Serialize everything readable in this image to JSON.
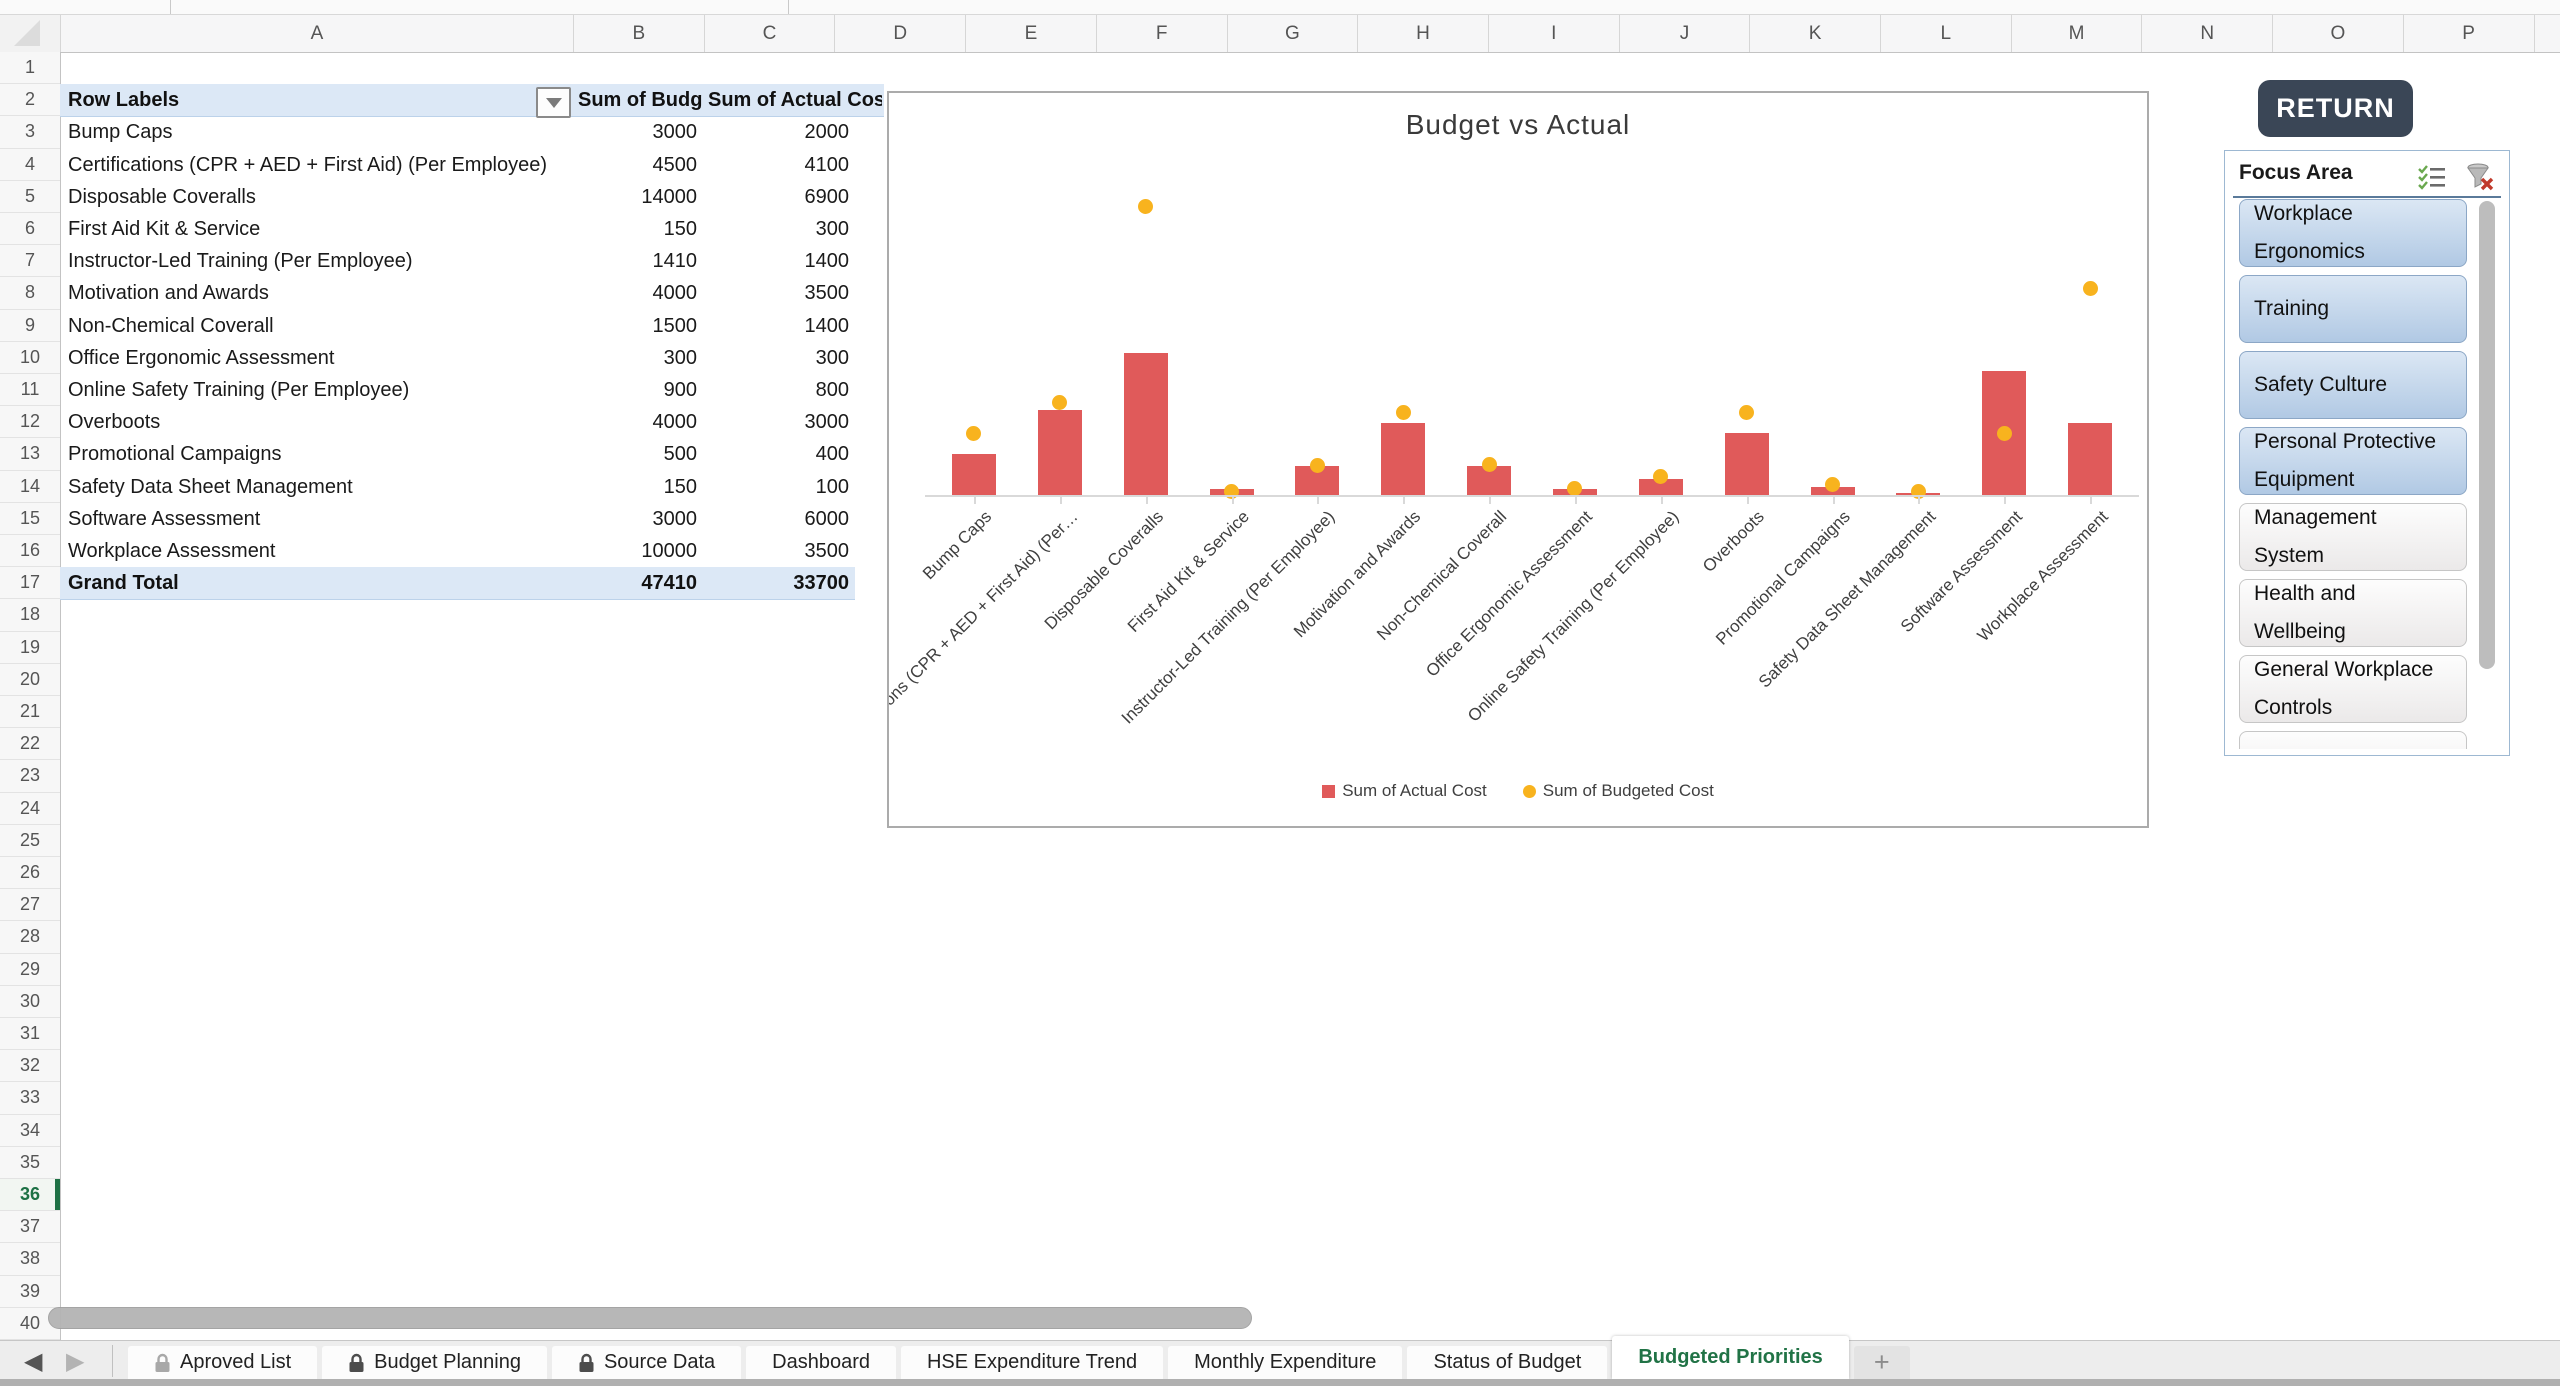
{
  "grid": {
    "column_letters": [
      "A",
      "B",
      "C",
      "D",
      "E",
      "F",
      "G",
      "H",
      "I",
      "J",
      "K",
      "L",
      "M",
      "N",
      "O",
      "P"
    ],
    "row_count": 40,
    "active_row": 36
  },
  "pivot": {
    "header": {
      "row_labels": "Row Labels",
      "budgeted_col": "Sum of Budge",
      "actual_col": "Sum of Actual Cost"
    },
    "rows": [
      {
        "label": "Bump Caps",
        "budgeted": 3000,
        "actual": 2000
      },
      {
        "label": "Certifications (CPR + AED + First Aid) (Per Employee)",
        "budgeted": 4500,
        "actual": 4100
      },
      {
        "label": "Disposable Coveralls",
        "budgeted": 14000,
        "actual": 6900
      },
      {
        "label": "First Aid Kit & Service",
        "budgeted": 150,
        "actual": 300
      },
      {
        "label": "Instructor-Led Training (Per Employee)",
        "budgeted": 1410,
        "actual": 1400
      },
      {
        "label": "Motivation and Awards",
        "budgeted": 4000,
        "actual": 3500
      },
      {
        "label": "Non-Chemical Coverall",
        "budgeted": 1500,
        "actual": 1400
      },
      {
        "label": "Office Ergonomic Assessment",
        "budgeted": 300,
        "actual": 300
      },
      {
        "label": "Online Safety Training (Per Employee)",
        "budgeted": 900,
        "actual": 800
      },
      {
        "label": "Overboots",
        "budgeted": 4000,
        "actual": 3000
      },
      {
        "label": "Promotional Campaigns",
        "budgeted": 500,
        "actual": 400
      },
      {
        "label": "Safety Data Sheet Management",
        "budgeted": 150,
        "actual": 100
      },
      {
        "label": "Software Assessment",
        "budgeted": 3000,
        "actual": 6000
      },
      {
        "label": "Workplace Assessment",
        "budgeted": 10000,
        "actual": 3500
      }
    ],
    "grand_total": {
      "label": "Grand Total",
      "budgeted": 47410,
      "actual": 33700
    }
  },
  "chart_data": {
    "type": "bar",
    "title": "Budget vs Actual",
    "categories": [
      "Bump Caps",
      "Certifications (CPR + AED + First Aid) (Per Employee)",
      "Disposable Coveralls",
      "First Aid Kit & Service",
      "Instructor-Led Training (Per Employee)",
      "Motivation and Awards",
      "Non-Chemical Coverall",
      "Office Ergonomic Assessment",
      "Online Safety Training (Per Employee)",
      "Overboots",
      "Promotional Campaigns",
      "Safety Data Sheet Management",
      "Software Assessment",
      "Workplace Assessment"
    ],
    "tick_labels": [
      "Bump Caps",
      "Certifications (CPR + AED + First Aid) (Per…",
      "Disposable Coveralls",
      "First Aid Kit & Service",
      "Instructor-Led Training (Per Employee)",
      "Motivation and Awards",
      "Non-Chemical Coverall",
      "Office Ergonomic Assessment",
      "Online Safety Training (Per Employee)",
      "Overboots",
      "Promotional Campaigns",
      "Safety Data Sheet Management",
      "Software Assessment",
      "Workplace Assessment"
    ],
    "series": [
      {
        "name": "Sum of Actual Cost",
        "type": "bar",
        "color": "#e05a5a",
        "values": [
          2000,
          4100,
          6900,
          300,
          1400,
          3500,
          1400,
          300,
          800,
          3000,
          400,
          100,
          6000,
          3500
        ]
      },
      {
        "name": "Sum of Budgeted Cost",
        "type": "scatter",
        "color": "#f8b31e",
        "values": [
          3000,
          4500,
          14000,
          150,
          1410,
          4000,
          1500,
          300,
          900,
          4000,
          500,
          150,
          3000,
          10000
        ]
      }
    ],
    "xlabel": "",
    "ylabel": "",
    "ylim": [
      0,
      16000
    ],
    "gridlines": false,
    "legend_position": "bottom"
  },
  "return_button": {
    "label": "RETURN"
  },
  "slicer": {
    "title": "Focus Area",
    "items": [
      {
        "label": "Workplace Ergonomics",
        "selected": true
      },
      {
        "label": "Training",
        "selected": true
      },
      {
        "label": "Safety Culture",
        "selected": true
      },
      {
        "label": "Personal Protective Equipment",
        "selected": true
      },
      {
        "label": "Management System",
        "selected": false
      },
      {
        "label": "Health and Wellbeing",
        "selected": false
      },
      {
        "label": "General Workplace Controls",
        "selected": false
      }
    ]
  },
  "sheet_tabs": {
    "tabs": [
      {
        "label": "Aproved List",
        "locked": true,
        "lock_shade": "light",
        "active": false
      },
      {
        "label": "Budget Planning",
        "locked": true,
        "lock_shade": "dark",
        "active": false
      },
      {
        "label": "Source Data",
        "locked": true,
        "lock_shade": "dark",
        "active": false
      },
      {
        "label": "Dashboard",
        "locked": false,
        "active": false
      },
      {
        "label": "HSE Expenditure Trend",
        "locked": false,
        "active": false
      },
      {
        "label": "Monthly Expenditure",
        "locked": false,
        "active": false
      },
      {
        "label": "Status of Budget",
        "locked": false,
        "active": false
      },
      {
        "label": "Budgeted Priorities",
        "locked": false,
        "active": true
      }
    ],
    "add_tab_label": "+"
  },
  "colors": {
    "bar": "#e05a5a",
    "dot": "#f8b31e",
    "pivot_header_fill": "#dce8f6",
    "accent_green": "#217346",
    "return_bg": "#3a4656"
  }
}
